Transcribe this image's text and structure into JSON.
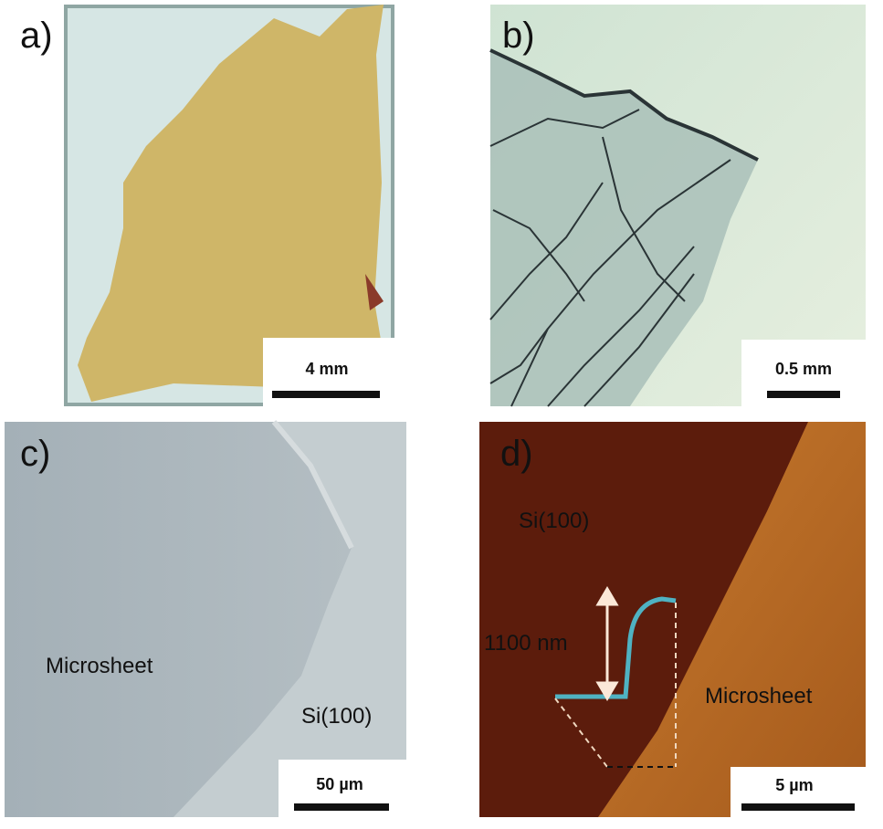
{
  "panels": [
    {
      "label": "a)",
      "scale_bar": "4 mm"
    },
    {
      "label": "b)",
      "scale_bar": "0.5 mm"
    },
    {
      "label": "c)",
      "scale_bar": "50 µm",
      "annotations": [
        "Microsheet",
        "Si(100)"
      ]
    },
    {
      "label": "d)",
      "scale_bar": "5 µm",
      "annotations": [
        "Si(100)",
        "1100 nm",
        "Microsheet"
      ]
    }
  ]
}
